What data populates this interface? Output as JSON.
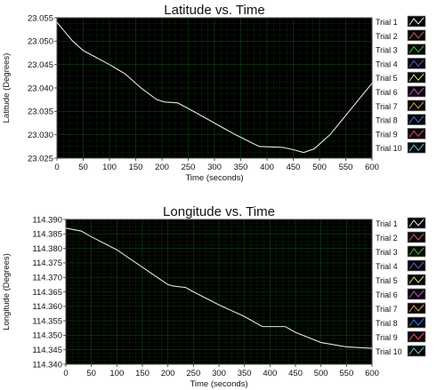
{
  "chart_data": [
    {
      "type": "line",
      "title": "Latitude vs. Time",
      "xlabel": "Time (seconds)",
      "ylabel": "Latitude (Degrees)",
      "xlim": [
        0,
        600
      ],
      "ylim": [
        23.025,
        23.055
      ],
      "xticks": [
        0,
        50,
        100,
        150,
        200,
        250,
        300,
        350,
        400,
        450,
        500,
        550,
        600
      ],
      "yticks": [
        23.025,
        23.03,
        23.035,
        23.04,
        23.045,
        23.05,
        23.055
      ],
      "ytick_labels": [
        "23.025",
        "23.030",
        "23.035",
        "23.040",
        "23.045",
        "23.050",
        "23.055"
      ],
      "grid": true,
      "legend_position": "right",
      "legend": [
        "Trial 1",
        "Trial 2",
        "Trial 3",
        "Trial 4",
        "Trial 5",
        "Trial 6",
        "Trial 7",
        "Trial 8",
        "Trial 9",
        "Trial 10"
      ],
      "legend_colors": [
        "#e6e6e6",
        "#e05050",
        "#40c040",
        "#5060e0",
        "#e0e080",
        "#c050c0",
        "#e0a040",
        "#4070ff",
        "#ff4080",
        "#60c0e0"
      ],
      "series": [
        {
          "x": [
            0,
            15,
            30,
            50,
            75,
            100,
            130,
            160,
            190,
            205,
            230,
            260,
            300,
            340,
            385,
            430,
            450,
            470,
            490,
            520,
            560,
            600
          ],
          "y": [
            23.054,
            23.052,
            23.05,
            23.048,
            23.0465,
            23.045,
            23.043,
            23.04,
            23.0375,
            23.037,
            23.0368,
            23.035,
            23.0325,
            23.03,
            23.0275,
            23.0273,
            23.0268,
            23.0262,
            23.027,
            23.03,
            23.0355,
            23.041
          ]
        }
      ]
    },
    {
      "type": "line",
      "title": "Longitude vs. Time",
      "xlabel": "Time (seconds)",
      "ylabel": "Longitude (Degrees)",
      "xlim": [
        0,
        600
      ],
      "ylim": [
        114.34,
        114.39
      ],
      "xticks": [
        0,
        50,
        100,
        150,
        200,
        250,
        300,
        350,
        400,
        450,
        500,
        550,
        600
      ],
      "yticks": [
        114.34,
        114.345,
        114.35,
        114.355,
        114.36,
        114.365,
        114.37,
        114.375,
        114.38,
        114.385,
        114.39
      ],
      "ytick_labels": [
        "114.340",
        "114.345",
        "114.350",
        "114.355",
        "114.360",
        "114.365",
        "114.370",
        "114.375",
        "114.380",
        "114.385",
        "114.390"
      ],
      "grid": true,
      "legend_position": "right",
      "legend": [
        "Trial 1",
        "Trial 2",
        "Trial 3",
        "Trial 4",
        "Trial 5",
        "Trial 6",
        "Trial 7",
        "Trial 8",
        "Trial 9",
        "Trial 10"
      ],
      "legend_colors": [
        "#e6e6e6",
        "#e05050",
        "#40c040",
        "#5060e0",
        "#e0e080",
        "#c050c0",
        "#e0a040",
        "#4070ff",
        "#ff4080",
        "#60c0e0"
      ],
      "series": [
        {
          "x": [
            0,
            30,
            50,
            100,
            150,
            200,
            210,
            235,
            250,
            300,
            350,
            385,
            430,
            450,
            500,
            550,
            600
          ],
          "y": [
            114.387,
            114.386,
            114.384,
            114.3795,
            114.3735,
            114.3675,
            114.367,
            114.3665,
            114.365,
            114.3605,
            114.3565,
            114.353,
            114.353,
            114.351,
            114.3475,
            114.346,
            114.3455
          ]
        }
      ]
    }
  ]
}
